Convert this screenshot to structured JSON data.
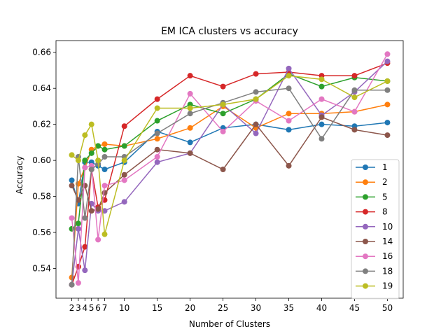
{
  "chart_data": {
    "type": "line",
    "title": "EM ICA clusters vs accuracy",
    "xlabel": "Number of Clusters",
    "ylabel": "Accuracy",
    "x": [
      2,
      3,
      4,
      5,
      6,
      7,
      10,
      15,
      20,
      25,
      30,
      35,
      40,
      45,
      50
    ],
    "x_ticks": [
      2,
      3,
      4,
      5,
      6,
      7,
      10,
      15,
      20,
      25,
      30,
      35,
      40,
      45,
      50
    ],
    "y_ticks": [
      0.54,
      0.56,
      0.58,
      0.6,
      0.62,
      0.64,
      0.66
    ],
    "xlim": [
      -0.4,
      52.4
    ],
    "ylim": [
      0.5235,
      0.6665
    ],
    "grid": false,
    "legend_position": "lower-right",
    "series": [
      {
        "name": "1",
        "color": "#1f77b4",
        "values": [
          0.589,
          0.576,
          0.599,
          0.599,
          0.597,
          0.595,
          0.599,
          0.616,
          0.61,
          0.618,
          0.62,
          0.617,
          0.62,
          0.619,
          0.621
        ]
      },
      {
        "name": "2",
        "color": "#ff7f0e",
        "values": [
          0.535,
          0.587,
          0.596,
          0.606,
          0.608,
          0.609,
          0.608,
          0.612,
          0.618,
          0.63,
          0.618,
          0.626,
          0.626,
          0.627,
          0.631
        ]
      },
      {
        "name": "5",
        "color": "#2ca02c",
        "values": [
          0.562,
          0.565,
          0.6,
          0.604,
          0.608,
          0.606,
          0.608,
          0.622,
          0.631,
          0.626,
          0.634,
          0.648,
          0.641,
          0.646,
          0.644
        ]
      },
      {
        "name": "8",
        "color": "#d62728",
        "values": [
          0.531,
          0.541,
          0.552,
          0.595,
          0.574,
          0.578,
          0.619,
          0.634,
          0.647,
          0.641,
          0.648,
          0.649,
          0.647,
          0.647,
          0.654
        ]
      },
      {
        "name": "10",
        "color": "#9467bd",
        "values": [
          0.531,
          0.562,
          0.539,
          0.576,
          0.572,
          0.572,
          0.577,
          0.599,
          0.604,
          0.631,
          0.615,
          0.651,
          0.625,
          0.638,
          0.655
        ]
      },
      {
        "name": "14",
        "color": "#8c564b",
        "values": [
          0.586,
          0.578,
          0.586,
          0.572,
          0.573,
          0.582,
          0.592,
          0.606,
          0.604,
          0.595,
          0.62,
          0.597,
          0.624,
          0.617,
          0.614
        ]
      },
      {
        "name": "16",
        "color": "#e377c2",
        "values": [
          0.568,
          0.532,
          0.596,
          0.597,
          0.556,
          0.586,
          0.589,
          0.602,
          0.637,
          0.616,
          0.633,
          0.622,
          0.634,
          0.627,
          0.659
        ]
      },
      {
        "name": "18",
        "color": "#7f7f7f",
        "values": [
          0.531,
          0.602,
          0.568,
          0.595,
          0.598,
          0.602,
          0.602,
          0.615,
          0.626,
          0.632,
          0.638,
          0.64,
          0.612,
          0.639,
          0.639
        ]
      },
      {
        "name": "19",
        "color": "#bcbd22",
        "values": [
          0.603,
          0.6,
          0.614,
          0.62,
          0.6,
          0.559,
          0.6,
          0.629,
          0.629,
          0.631,
          0.634,
          0.647,
          0.645,
          0.635,
          0.644
        ]
      }
    ]
  }
}
